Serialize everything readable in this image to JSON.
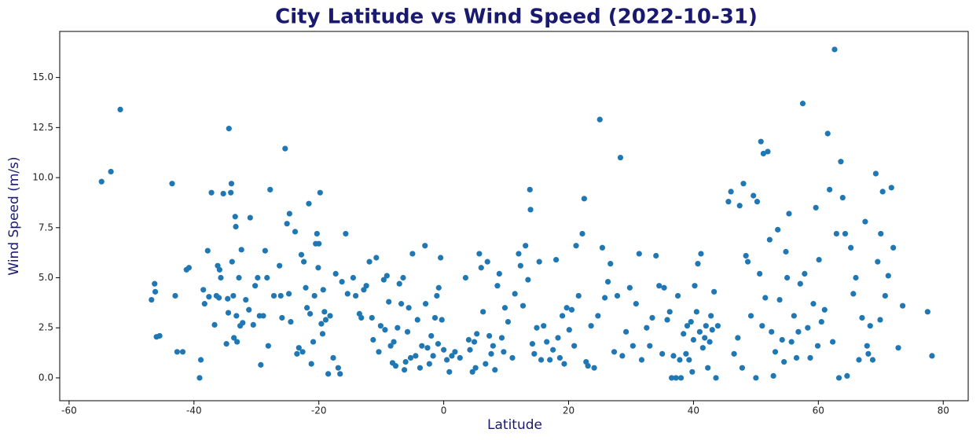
{
  "chart_data": {
    "type": "scatter",
    "title": "City Latitude vs Wind Speed (2022-10-31)",
    "x_label": "Latitude",
    "y_label": "Wind Speed (m/s)",
    "color": "#1f77b4",
    "xlim": [
      -61.5,
      84.0
    ],
    "ylim": [
      -1.14,
      17.3
    ],
    "xticks": [
      -60,
      -40,
      -20,
      0,
      20,
      40,
      60,
      80
    ],
    "yticks": [
      {
        "value": 0,
        "label": "0.0"
      },
      2.5,
      {
        "value": 5,
        "label": "5.0"
      },
      7.5,
      {
        "value": 10,
        "label": "10.0"
      },
      12.5,
      {
        "value": 15,
        "label": "15.0"
      }
    ],
    "x": [
      -54.8,
      -53.3,
      -51.8,
      -46.8,
      -46.3,
      -46.2,
      -46,
      -45.5,
      -43.5,
      -43,
      -42.7,
      -41.8,
      -41.2,
      -40.8,
      -38.9,
      -39.1,
      -38.5,
      -38.3,
      -37.8,
      -37.6,
      -37.2,
      -36.7,
      -36.4,
      -36.2,
      -35.9,
      -35.3,
      -34.8,
      -34.6,
      -34.5,
      -34.4,
      -34.1,
      -34.0,
      -33.9,
      -33.7,
      -33.6,
      -33.4,
      -33.3,
      -33.2,
      -33.1,
      -32.8,
      -32.6,
      -32.4,
      -32.2,
      -31.7,
      -31.0,
      -30.5,
      -30.2,
      -29.8,
      -29.5,
      -29.3,
      -28.9,
      -28.6,
      -28.3,
      -28.1,
      -27.8,
      -27.2,
      -26.3,
      -26.1,
      -25.4,
      -25.1,
      -24.7,
      -24.5,
      -23.8,
      -23.5,
      -23.2,
      -22.8,
      -22.4,
      -22.1,
      -21.6,
      -21.4,
      -21.2,
      -20.9,
      -20.7,
      -20.5,
      -20.3,
      -20.0,
      -19.8,
      -19.6,
      -19.3,
      -19.1,
      -18.5,
      -18.2,
      -17.7,
      -17.3,
      -16.9,
      -16.6,
      -16.3,
      -15.7,
      -15.4,
      -24.8,
      -22.6,
      -20.1,
      -19.4,
      -18.9,
      -21.9,
      -25.9,
      -31.2,
      -35.7,
      -36.0,
      -14.5,
      -14.1,
      -13.5,
      -13.2,
      -12.8,
      -12.4,
      -11.9,
      -11.5,
      -11.3,
      -10.8,
      -10.4,
      -10.1,
      -9.6,
      -9.1,
      -8.8,
      -8.5,
      -8.2,
      -8.0,
      -7.7,
      -7.4,
      -7.1,
      -6.8,
      -6.5,
      -6.3,
      -6.1,
      -5.8,
      -5.6,
      -5.0,
      -4.5,
      -4.2,
      -3.8,
      -3.5,
      -3.0,
      -2.9,
      -2.6,
      -2.3,
      -2.0,
      -1.7,
      -1.4,
      -1.1,
      -0.8,
      -0.5,
      -0.3,
      0,
      0.5,
      0.9,
      1.3,
      1.8,
      3.5,
      4.0,
      4.2,
      4.6,
      4.9,
      5.3,
      5.7,
      6.0,
      6.3,
      6.7,
      7.0,
      7.3,
      7.6,
      7.9,
      8.2,
      8.6,
      8.9,
      9.3,
      9.6,
      9.8,
      -9.4,
      -5.3,
      -0.9,
      2.6,
      5.1,
      10.3,
      11.0,
      11.4,
      12.0,
      12.3,
      12.7,
      13.1,
      13.5,
      13.8,
      13.9,
      14.2,
      14.5,
      14.9,
      15.3,
      15.6,
      16.0,
      16.5,
      17.0,
      17.5,
      18.0,
      18.3,
      18.6,
      19.0,
      19.3,
      19.7,
      20.1,
      20.5,
      20.9,
      21.2,
      21.6,
      22.2,
      22.5,
      22.8,
      23.1,
      23.6,
      24.1,
      24.7,
      25.0,
      25.4,
      25.8,
      26.3,
      26.7,
      27.3,
      27.8,
      28.3,
      28.6,
      29.2,
      29.8,
      30.3,
      30.8,
      31.3,
      31.7,
      32.5,
      33.0,
      33.4,
      34.0,
      34.5,
      35.0,
      35.3,
      35.8,
      36.2,
      36.5,
      36.8,
      37.2,
      37.5,
      37.8,
      38.0,
      38.4,
      38.8,
      39.0,
      39.3,
      39.6,
      40.0,
      40.2,
      40.5,
      40.7,
      41.0,
      41.2,
      41.5,
      41.8,
      42.0,
      42.3,
      42.6,
      43.0,
      43.3,
      43.6,
      43.9,
      39.8,
      42.8,
      45.6,
      46.0,
      46.5,
      47.1,
      47.4,
      47.8,
      48.0,
      48.4,
      48.7,
      49.2,
      49.6,
      50.2,
      50.6,
      50.8,
      51.2,
      51.5,
      51.9,
      52.2,
      52.5,
      52.8,
      53.1,
      53.5,
      53.8,
      54.2,
      54.5,
      55.0,
      55.3,
      55.7,
      56.1,
      56.5,
      57.1,
      57.5,
      57.8,
      58.3,
      58.7,
      59.2,
      59.6,
      60.1,
      60.5,
      61.0,
      61.5,
      61.8,
      62.3,
      62.6,
      62.9,
      63.3,
      63.6,
      63.9,
      64.3,
      64.6,
      50.0,
      51.0,
      56.8,
      59.9,
      54.8,
      65.2,
      65.6,
      66.0,
      66.5,
      67.0,
      67.5,
      67.8,
      68.3,
      68.7,
      69.2,
      69.5,
      69.9,
      70.3,
      70.7,
      71.2,
      71.7,
      72.0,
      72.8,
      73.5,
      77.5,
      78.2,
      70.0,
      68.0
    ],
    "values": [
      9.8,
      10.3,
      13.4,
      3.9,
      4.7,
      4.3,
      2.05,
      2.1,
      9.7,
      4.1,
      1.3,
      1.3,
      5.4,
      5.5,
      0.9,
      0,
      4.4,
      3.7,
      6.35,
      4.05,
      9.25,
      2.65,
      4.1,
      5.6,
      5.4,
      9.2,
      1.7,
      3.95,
      3.25,
      12.45,
      9.25,
      9.7,
      5.8,
      4.1,
      2.0,
      8.05,
      7.55,
      3.1,
      1.8,
      5.0,
      2.6,
      6.4,
      2.75,
      3.9,
      8.0,
      2.65,
      4.6,
      5.0,
      3.1,
      0.65,
      3.1,
      6.35,
      5.0,
      1.6,
      9.4,
      4.1,
      5.6,
      4.1,
      11.45,
      7.7,
      8.2,
      2.8,
      7.3,
      1.2,
      1.5,
      6.15,
      5.8,
      4.5,
      8.7,
      3.2,
      0.7,
      1.8,
      4.1,
      6.7,
      7.2,
      6.7,
      9.25,
      2.7,
      4.4,
      3.3,
      0.2,
      3.1,
      1.0,
      5.2,
      0.5,
      0.2,
      4.8,
      7.2,
      4.2,
      4.2,
      1.3,
      5.5,
      2.2,
      2.9,
      3.5,
      3.0,
      3.4,
      5.0,
      4.0,
      5.0,
      4.1,
      3.2,
      3.0,
      4.4,
      4.6,
      5.8,
      3.0,
      1.9,
      6.0,
      1.3,
      2.6,
      4.9,
      5.1,
      3.8,
      1.6,
      0.75,
      1.8,
      0.6,
      2.5,
      4.7,
      3.7,
      5.0,
      0.4,
      0.8,
      2.3,
      3.5,
      6.2,
      1.1,
      2.9,
      0.5,
      1.6,
      6.6,
      3.7,
      1.5,
      0.7,
      2.1,
      1.1,
      3.0,
      4.1,
      4.5,
      6.0,
      2.9,
      1.4,
      0.9,
      0.3,
      1.1,
      1.3,
      5.0,
      1.9,
      1.4,
      0.3,
      1.8,
      2.2,
      6.2,
      5.5,
      3.3,
      0.7,
      5.8,
      2.1,
      1.2,
      1.6,
      0.4,
      4.6,
      5.2,
      2.0,
      1.3,
      3.5,
      2.4,
      1.0,
      1.7,
      1.0,
      0.5,
      2.8,
      1.0,
      4.2,
      6.2,
      5.6,
      3.6,
      6.6,
      4.9,
      9.4,
      8.4,
      1.7,
      1.2,
      2.5,
      5.8,
      0.9,
      2.6,
      1.8,
      0.9,
      1.4,
      5.9,
      2.0,
      1.0,
      3.1,
      0.7,
      3.5,
      2.4,
      3.4,
      1.6,
      6.6,
      4.1,
      7.2,
      8.95,
      0.8,
      0.6,
      2.6,
      0.5,
      3.1,
      12.9,
      6.5,
      4.0,
      4.8,
      5.7,
      1.3,
      4.1,
      11.0,
      1.1,
      2.3,
      4.5,
      1.6,
      3.7,
      6.2,
      0.9,
      2.5,
      1.6,
      3.0,
      6.1,
      4.6,
      1.2,
      4.5,
      2.9,
      3.3,
      0,
      1.1,
      0,
      4.1,
      0.9,
      0,
      2.2,
      1.2,
      2.6,
      0.9,
      2.8,
      1.9,
      4.6,
      3.3,
      5.7,
      2.3,
      6.2,
      1.5,
      2.0,
      2.6,
      0.5,
      1.8,
      2.4,
      4.3,
      0,
      2.6,
      0.3,
      3.1,
      8.8,
      9.3,
      1.2,
      2.0,
      8.6,
      0.5,
      9.7,
      6.1,
      5.8,
      3.1,
      9.1,
      8.8,
      5.2,
      11.8,
      11.2,
      4.0,
      11.3,
      6.9,
      2.3,
      0.1,
      1.3,
      7.4,
      3.9,
      1.9,
      0.8,
      5.0,
      8.2,
      1.8,
      3.1,
      1.0,
      4.7,
      13.7,
      5.2,
      2.5,
      1.0,
      3.7,
      8.5,
      5.9,
      2.8,
      3.4,
      12.2,
      9.4,
      1.8,
      16.4,
      7.2,
      0,
      10.8,
      9.0,
      7.2,
      0.1,
      0,
      2.6,
      2.3,
      1.6,
      6.3,
      6.5,
      4.2,
      5.0,
      0.9,
      3.0,
      7.8,
      1.6,
      2.6,
      0.9,
      10.2,
      5.8,
      2.9,
      9.3,
      4.1,
      5.1,
      9.5,
      6.5,
      1.5,
      3.6,
      3.3,
      1.1,
      7.2,
      1.2
    ]
  }
}
